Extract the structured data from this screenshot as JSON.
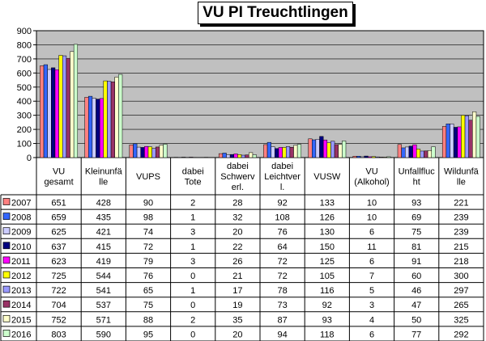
{
  "chart_data": {
    "type": "bar",
    "title": "VU PI Treuchtlingen",
    "xlabel": "",
    "ylabel": "",
    "ylim": [
      0,
      900
    ],
    "yticks": [
      0,
      100,
      200,
      300,
      400,
      500,
      600,
      700,
      800,
      900
    ],
    "grid": true,
    "legend": "table-left",
    "plot_background": "#c0c0c0",
    "categories": [
      [
        "VU",
        "gesamt"
      ],
      [
        "Kleinunfä",
        "lle"
      ],
      [
        "VUPS"
      ],
      [
        "dabei",
        "Tote"
      ],
      [
        "dabei",
        "Schwerv",
        "erl."
      ],
      [
        "dabei",
        "Leichtver",
        "l."
      ],
      [
        "VUSW"
      ],
      [
        "VU",
        "(Alkohol)"
      ],
      [
        "Unfallfluc",
        "ht"
      ],
      [
        "Wildunfä",
        "lle"
      ]
    ],
    "series": [
      {
        "name": "2007",
        "color": "#ff8080",
        "values": [
          651,
          428,
          90,
          2,
          28,
          92,
          133,
          10,
          93,
          221
        ]
      },
      {
        "name": "2008",
        "color": "#3366ff",
        "values": [
          659,
          435,
          98,
          1,
          32,
          108,
          126,
          10,
          69,
          239
        ]
      },
      {
        "name": "2009",
        "color": "#ccccff",
        "values": [
          625,
          421,
          74,
          3,
          20,
          76,
          130,
          6,
          75,
          239
        ]
      },
      {
        "name": "2010",
        "color": "#000080",
        "values": [
          637,
          415,
          72,
          1,
          22,
          64,
          150,
          11,
          81,
          215
        ]
      },
      {
        "name": "2011",
        "color": "#ff00ff",
        "values": [
          623,
          419,
          79,
          3,
          26,
          72,
          125,
          6,
          91,
          218
        ]
      },
      {
        "name": "2012",
        "color": "#ffff00",
        "values": [
          725,
          544,
          76,
          0,
          21,
          72,
          105,
          7,
          60,
          300
        ]
      },
      {
        "name": "2013",
        "color": "#9999ff",
        "values": [
          722,
          541,
          65,
          1,
          17,
          78,
          116,
          5,
          46,
          297
        ]
      },
      {
        "name": "2014",
        "color": "#993366",
        "values": [
          704,
          537,
          75,
          0,
          19,
          73,
          92,
          3,
          47,
          265
        ]
      },
      {
        "name": "2015",
        "color": "#ffffcc",
        "values": [
          752,
          571,
          88,
          2,
          35,
          87,
          93,
          4,
          50,
          325
        ]
      },
      {
        "name": "2016",
        "color": "#ccffcc",
        "values": [
          803,
          590,
          95,
          0,
          20,
          94,
          118,
          6,
          77,
          292
        ]
      }
    ]
  }
}
